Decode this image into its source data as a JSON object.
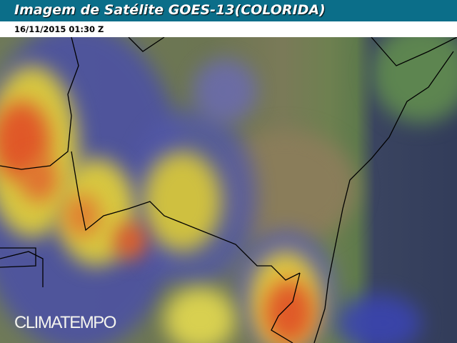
{
  "header": {
    "title": "Imagem de Satélite GOES-13(COLORIDA)"
  },
  "timestamp": "16/11/2015 01:30 Z",
  "map": {
    "logo": "CLIMATEMPO",
    "colors": {
      "header": "#0b6e89",
      "ocean": "#323c5a",
      "cloud_low": "#4a4fa8",
      "cloud_mid": "#d8c840",
      "cloud_high": "#e05828"
    }
  }
}
